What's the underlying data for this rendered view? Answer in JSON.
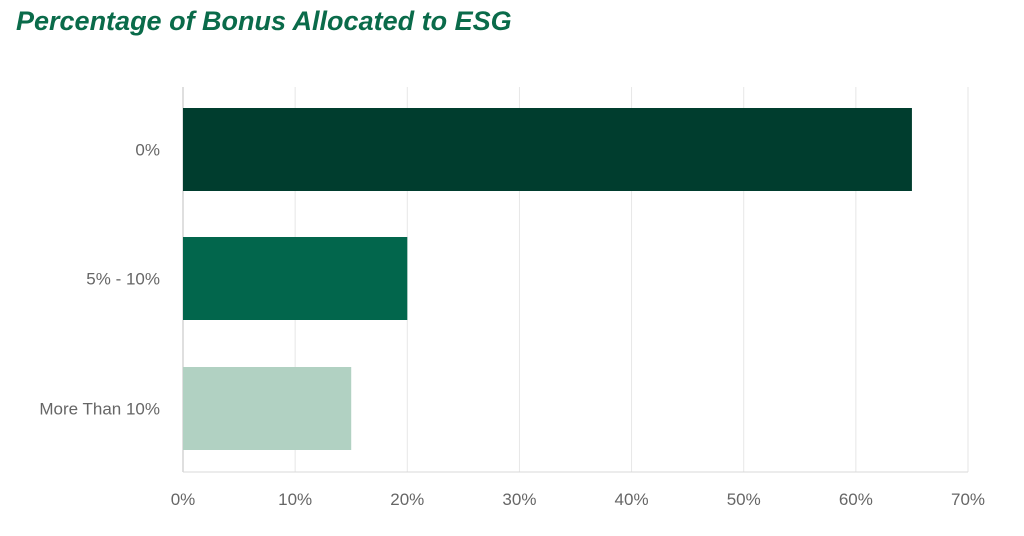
{
  "chart_data": {
    "type": "bar",
    "orientation": "horizontal",
    "title": "Percentage of Bonus Allocated to ESG",
    "categories": [
      "0%",
      "5% - 10%",
      "More Than 10%"
    ],
    "values": [
      65,
      20,
      15
    ],
    "bar_colors": [
      "#003d2e",
      "#02664c",
      "#b1d1c2"
    ],
    "x_ticks": [
      "0%",
      "10%",
      "20%",
      "30%",
      "40%",
      "50%",
      "60%",
      "70%"
    ],
    "xlim": [
      0,
      70
    ],
    "grid": true,
    "legend": "none",
    "title_color": "#0a6b4a"
  }
}
